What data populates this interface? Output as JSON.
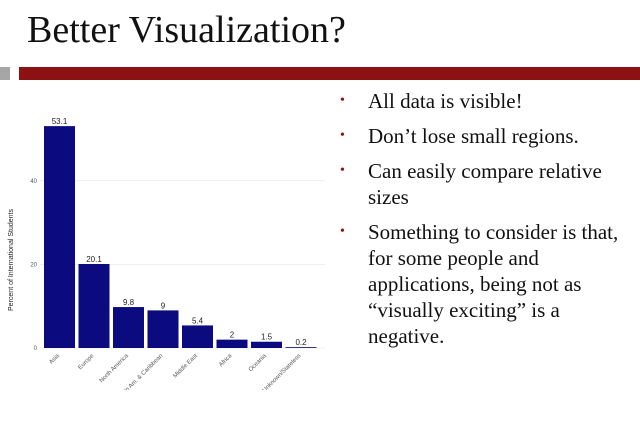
{
  "slide": {
    "title": "Better Visualization?",
    "bullets": [
      "All data is visible!",
      "Don’t lose small regions.",
      "Can easily compare relative sizes",
      "Something to consider is that, for some people and applications, being not as “visually exciting” is a negative."
    ],
    "colors": {
      "accent_bar": "#8b1113",
      "small_bar": "#a6a6a6",
      "bar_fill": "#0b0b7f"
    }
  },
  "chart_data": {
    "type": "bar",
    "categories": [
      "Asia",
      "Europe",
      "North America",
      "Latin Am. & Caribbean",
      "Middle East",
      "Africa",
      "Oceania",
      "Unknown/Stateless"
    ],
    "values": [
      53.1,
      20.1,
      9.8,
      9,
      5.4,
      2,
      1.5,
      0.2
    ],
    "value_labels": [
      "53.1",
      "20.1",
      "9.8",
      "9",
      "5.4",
      "2",
      "1.5",
      "0.2"
    ],
    "ylabel": "Percent of International Students",
    "xlabel": "",
    "ylim": [
      0,
      56
    ],
    "yticks": [
      "0",
      "20",
      "40"
    ],
    "grid": true,
    "legend": "none"
  }
}
